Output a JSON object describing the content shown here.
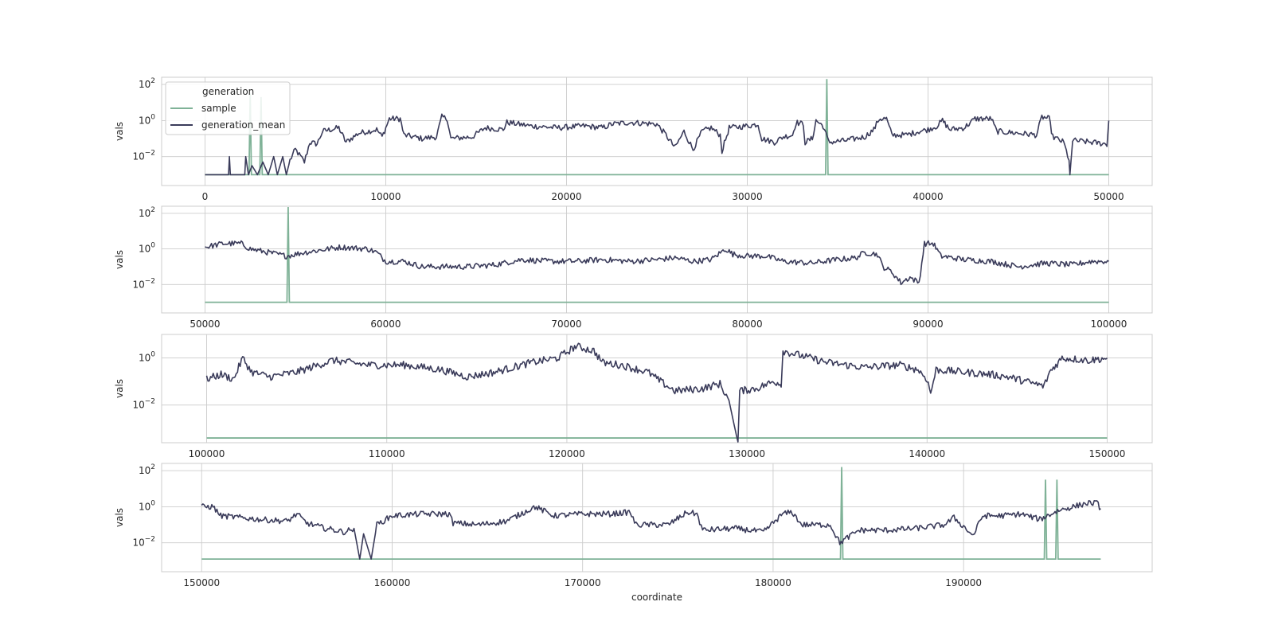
{
  "colors": {
    "sample": "#7fb297",
    "generation_mean": "#3a3b5a",
    "grid": "#cccccc",
    "background": "#ffffff"
  },
  "legend": {
    "title": "generation",
    "entries": [
      "sample",
      "generation_mean"
    ],
    "placement": "upper-left of first panel"
  },
  "chart_data": [
    {
      "type": "line",
      "panel": 1,
      "xlabel": "",
      "ylabel": "vals",
      "yscale": "log",
      "xlim": [
        -2400,
        52400
      ],
      "ylim_exponent": [
        -3.6,
        2.4
      ],
      "xticks": [
        0,
        10000,
        20000,
        30000,
        40000,
        50000
      ],
      "xtick_labels": [
        "0",
        "10000",
        "20000",
        "30000",
        "40000",
        "50000"
      ],
      "yticks_exponent": [
        -2,
        0,
        2
      ],
      "grid": true,
      "series": [
        {
          "name": "sample",
          "spikes": [
            [
              2500,
              1.5
            ],
            [
              3100,
              1.3
            ],
            [
              34400,
              2.3
            ]
          ],
          "baseline_exponent": -3
        }
      ],
      "mean_anchors_exponent": [
        [
          0,
          -3
        ],
        [
          1300,
          -3
        ],
        [
          1350,
          -2
        ],
        [
          1400,
          -3
        ],
        [
          2200,
          -3
        ],
        [
          2250,
          -2
        ],
        [
          2400,
          -3
        ],
        [
          2600,
          -2.5
        ],
        [
          2900,
          -3
        ],
        [
          3200,
          -2.3
        ],
        [
          3500,
          -3
        ],
        [
          3800,
          -2
        ],
        [
          4000,
          -3
        ],
        [
          4300,
          -2
        ],
        [
          4500,
          -3
        ],
        [
          4700,
          -2.2
        ],
        [
          5000,
          -1.6
        ],
        [
          5500,
          -2.3
        ],
        [
          5800,
          -1.2
        ],
        [
          6200,
          -1.3
        ],
        [
          6500,
          -0.6
        ],
        [
          7400,
          -0.4
        ],
        [
          7800,
          -1.2
        ],
        [
          8500,
          -0.7
        ],
        [
          9500,
          -0.5
        ],
        [
          9800,
          -0.9
        ],
        [
          10200,
          0.1
        ],
        [
          10800,
          0.1
        ],
        [
          11000,
          -0.8
        ],
        [
          12000,
          -1.0
        ],
        [
          12800,
          -0.9
        ],
        [
          13100,
          0.2
        ],
        [
          13400,
          0.1
        ],
        [
          13600,
          -1.0
        ],
        [
          14800,
          -0.9
        ],
        [
          15500,
          -0.4
        ],
        [
          16500,
          -0.5
        ],
        [
          16700,
          -0.1
        ],
        [
          18000,
          -0.3
        ],
        [
          19500,
          -0.4
        ],
        [
          21000,
          -0.3
        ],
        [
          22000,
          -0.4
        ],
        [
          22500,
          -0.2
        ],
        [
          23500,
          -0.1
        ],
        [
          25000,
          -0.2
        ],
        [
          25500,
          -0.8
        ],
        [
          26000,
          -1.5
        ],
        [
          26500,
          -0.6
        ],
        [
          27000,
          -1.6
        ],
        [
          27500,
          -0.6
        ],
        [
          28000,
          -0.4
        ],
        [
          28500,
          -0.8
        ],
        [
          28600,
          -1.7
        ],
        [
          29000,
          -0.4
        ],
        [
          30000,
          -0.3
        ],
        [
          30600,
          -0.2
        ],
        [
          30800,
          -1.0
        ],
        [
          31500,
          -1.2
        ],
        [
          32000,
          -0.9
        ],
        [
          32500,
          -0.8
        ],
        [
          32700,
          -0.1
        ],
        [
          33100,
          -0.2
        ],
        [
          33200,
          -1.2
        ],
        [
          33600,
          -1.0
        ],
        [
          33800,
          0
        ],
        [
          34200,
          -0.3
        ],
        [
          34500,
          -1.2
        ],
        [
          35500,
          -1.1
        ],
        [
          36500,
          -0.9
        ],
        [
          37000,
          -0.5
        ],
        [
          37300,
          0.1
        ],
        [
          37700,
          0.1
        ],
        [
          38000,
          -0.8
        ],
        [
          38800,
          -0.8
        ],
        [
          39500,
          -0.6
        ],
        [
          40000,
          -0.5
        ],
        [
          40500,
          -0.3
        ],
        [
          40800,
          0
        ],
        [
          41200,
          -0.5
        ],
        [
          42000,
          -0.4
        ],
        [
          42600,
          0.1
        ],
        [
          43500,
          0.1
        ],
        [
          43800,
          -0.6
        ],
        [
          45000,
          -0.7
        ],
        [
          46000,
          -0.8
        ],
        [
          46300,
          0.2
        ],
        [
          46700,
          0.1
        ],
        [
          46900,
          -0.9
        ],
        [
          47500,
          -1.2
        ],
        [
          47800,
          -2.2
        ],
        [
          47850,
          -3.0
        ],
        [
          48000,
          -1.1
        ],
        [
          49000,
          -1.2
        ],
        [
          49900,
          -1.3
        ],
        [
          50000,
          0
        ]
      ]
    },
    {
      "type": "line",
      "panel": 2,
      "xlabel": "",
      "ylabel": "vals",
      "yscale": "log",
      "xlim": [
        47600,
        102400
      ],
      "ylim_exponent": [
        -3.6,
        2.4
      ],
      "xticks": [
        50000,
        60000,
        70000,
        80000,
        90000,
        100000
      ],
      "xtick_labels": [
        "50000",
        "60000",
        "70000",
        "80000",
        "90000",
        "100000"
      ],
      "yticks_exponent": [
        -2,
        0,
        2
      ],
      "grid": true,
      "series": [
        {
          "name": "sample",
          "spikes": [
            [
              54600,
              3.1
            ]
          ],
          "baseline_exponent": -3
        }
      ],
      "mean_anchors_exponent": [
        [
          50000,
          0.1
        ],
        [
          51000,
          0.3
        ],
        [
          52000,
          0.3
        ],
        [
          52500,
          0
        ],
        [
          53500,
          -0.2
        ],
        [
          54500,
          -0.4
        ],
        [
          55500,
          -0.2
        ],
        [
          57500,
          0.1
        ],
        [
          59000,
          0
        ],
        [
          59500,
          -0.2
        ],
        [
          60000,
          -0.7
        ],
        [
          61000,
          -0.7
        ],
        [
          62000,
          -1.0
        ],
        [
          63000,
          -1.0
        ],
        [
          64500,
          -1.0
        ],
        [
          66000,
          -0.9
        ],
        [
          67500,
          -0.6
        ],
        [
          69000,
          -0.7
        ],
        [
          70500,
          -0.7
        ],
        [
          72000,
          -0.6
        ],
        [
          73500,
          -0.7
        ],
        [
          75000,
          -0.6
        ],
        [
          76000,
          -0.5
        ],
        [
          77000,
          -0.7
        ],
        [
          78000,
          -0.6
        ],
        [
          78800,
          0
        ],
        [
          79200,
          -0.3
        ],
        [
          80000,
          -0.4
        ],
        [
          81000,
          -0.4
        ],
        [
          82000,
          -0.7
        ],
        [
          83500,
          -0.8
        ],
        [
          85000,
          -0.6
        ],
        [
          86000,
          -0.5
        ],
        [
          86500,
          -0.2
        ],
        [
          87200,
          -0.3
        ],
        [
          87500,
          -1.0
        ],
        [
          88000,
          -1.3
        ],
        [
          88500,
          -1.9
        ],
        [
          89000,
          -1.6
        ],
        [
          89500,
          -1.9
        ],
        [
          89800,
          0.3
        ],
        [
          90300,
          0.3
        ],
        [
          90700,
          -0.4
        ],
        [
          92000,
          -0.6
        ],
        [
          93500,
          -0.7
        ],
        [
          95000,
          -1.0
        ],
        [
          96500,
          -0.8
        ],
        [
          98000,
          -0.9
        ],
        [
          99000,
          -0.7
        ],
        [
          100000,
          -0.7
        ]
      ]
    },
    {
      "type": "line",
      "panel": 3,
      "xlabel": "",
      "ylabel": "vals",
      "yscale": "log",
      "xlim": [
        97500,
        152500
      ],
      "ylim_exponent": [
        -3.6,
        1.0
      ],
      "xticks": [
        100000,
        110000,
        120000,
        130000,
        140000,
        150000
      ],
      "xtick_labels": [
        "100000",
        "110000",
        "120000",
        "130000",
        "140000",
        "150000"
      ],
      "yticks_exponent": [
        -2,
        0
      ],
      "grid": true,
      "series": [
        {
          "name": "sample",
          "spikes": [],
          "baseline_exponent": -3.4
        }
      ],
      "mean_anchors_exponent": [
        [
          100000,
          -0.9
        ],
        [
          100800,
          -0.7
        ],
        [
          101500,
          -0.9
        ],
        [
          102000,
          0
        ],
        [
          102500,
          -0.6
        ],
        [
          103500,
          -0.8
        ],
        [
          105000,
          -0.6
        ],
        [
          107000,
          -0.1
        ],
        [
          109000,
          -0.3
        ],
        [
          111000,
          -0.3
        ],
        [
          113000,
          -0.5
        ],
        [
          114500,
          -0.8
        ],
        [
          116000,
          -0.6
        ],
        [
          118000,
          -0.2
        ],
        [
          119500,
          0
        ],
        [
          120500,
          0.5
        ],
        [
          121500,
          0.3
        ],
        [
          122000,
          -0.2
        ],
        [
          123000,
          -0.3
        ],
        [
          124500,
          -0.6
        ],
        [
          125200,
          -1.0
        ],
        [
          126000,
          -1.4
        ],
        [
          127500,
          -1.3
        ],
        [
          128500,
          -1.1
        ],
        [
          129000,
          -1.8
        ],
        [
          129500,
          -3.6
        ],
        [
          129600,
          -1.4
        ],
        [
          130500,
          -1.3
        ],
        [
          131500,
          -1.0
        ],
        [
          131900,
          -1.1
        ],
        [
          132000,
          0.3
        ],
        [
          133000,
          0.1
        ],
        [
          134500,
          -0.2
        ],
        [
          136500,
          -0.4
        ],
        [
          138500,
          -0.3
        ],
        [
          139500,
          -0.5
        ],
        [
          140000,
          -0.9
        ],
        [
          140200,
          -1.5
        ],
        [
          140500,
          -0.5
        ],
        [
          142000,
          -0.6
        ],
        [
          143500,
          -0.7
        ],
        [
          144500,
          -0.8
        ],
        [
          145500,
          -1.0
        ],
        [
          146500,
          -1.2
        ],
        [
          146800,
          -0.6
        ],
        [
          147500,
          0
        ],
        [
          149000,
          -0.1
        ],
        [
          150000,
          0
        ]
      ]
    },
    {
      "type": "line",
      "panel": 4,
      "xlabel": "coordinate",
      "ylabel": "vals",
      "yscale": "log",
      "xlim": [
        147900,
        199900
      ],
      "ylim_exponent": [
        -3.6,
        2.4
      ],
      "xticks": [
        150000,
        160000,
        170000,
        180000,
        190000
      ],
      "xtick_labels": [
        "150000",
        "160000",
        "170000",
        "180000",
        "190000"
      ],
      "yticks_exponent": [
        -2,
        0,
        2
      ],
      "grid": true,
      "series": [
        {
          "name": "sample",
          "spikes": [
            [
              183600,
              2.2
            ],
            [
              194300,
              1.5
            ],
            [
              194900,
              1.5
            ]
          ],
          "baseline_exponent": -2.9
        }
      ],
      "mean_anchors_exponent": [
        [
          150000,
          0
        ],
        [
          150600,
          0
        ],
        [
          151000,
          -0.5
        ],
        [
          152000,
          -0.6
        ],
        [
          153000,
          -0.7
        ],
        [
          154500,
          -0.8
        ],
        [
          155000,
          -0.4
        ],
        [
          155500,
          -0.9
        ],
        [
          156500,
          -1.2
        ],
        [
          157500,
          -1.4
        ],
        [
          158000,
          -1.2
        ],
        [
          158300,
          -2.9
        ],
        [
          158500,
          -1.5
        ],
        [
          158900,
          -2.9
        ],
        [
          159200,
          -1.0
        ],
        [
          160000,
          -0.5
        ],
        [
          161500,
          -0.4
        ],
        [
          163000,
          -0.4
        ],
        [
          163200,
          -0.9
        ],
        [
          164500,
          -1.0
        ],
        [
          166000,
          -0.8
        ],
        [
          167500,
          0
        ],
        [
          168500,
          -0.5
        ],
        [
          170000,
          -0.4
        ],
        [
          171500,
          -0.4
        ],
        [
          172500,
          -0.3
        ],
        [
          172800,
          -1.0
        ],
        [
          174500,
          -1.0
        ],
        [
          175500,
          -0.3
        ],
        [
          176000,
          -0.4
        ],
        [
          176300,
          -1.3
        ],
        [
          178000,
          -1.2
        ],
        [
          179500,
          -1.4
        ],
        [
          180500,
          -0.4
        ],
        [
          181000,
          -0.3
        ],
        [
          181500,
          -1.0
        ],
        [
          183000,
          -1.0
        ],
        [
          183500,
          -2.0
        ],
        [
          184500,
          -1.3
        ],
        [
          186000,
          -1.3
        ],
        [
          187500,
          -1.2
        ],
        [
          189000,
          -1.0
        ],
        [
          189500,
          -0.6
        ],
        [
          190000,
          -1.1
        ],
        [
          190500,
          -1.6
        ],
        [
          191000,
          -0.5
        ],
        [
          192000,
          -0.5
        ],
        [
          193000,
          -0.4
        ],
        [
          194000,
          -0.7
        ],
        [
          195000,
          -0.2
        ],
        [
          196500,
          0.2
        ],
        [
          197000,
          0.2
        ],
        [
          197200,
          -0.1
        ]
      ]
    }
  ]
}
